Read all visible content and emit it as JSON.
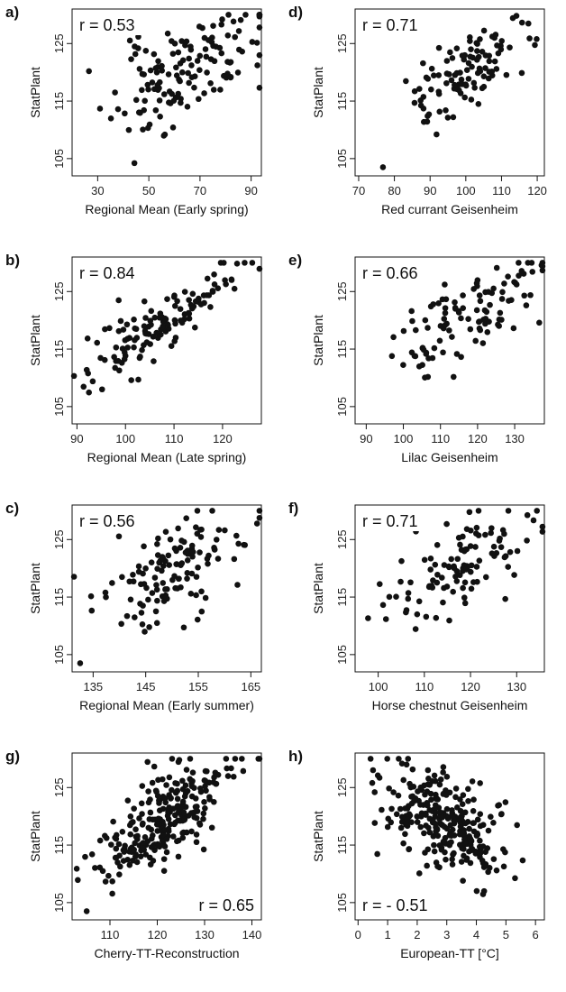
{
  "chart_data": [
    {
      "panel": "a)",
      "type": "scatter",
      "xlabel": "Regional Mean (Early spring)",
      "ylabel": "StatPlant",
      "annotation": "r = 0.53",
      "annotation_pos": "top-left",
      "xlim": [
        20,
        94
      ],
      "ylim": [
        102,
        131
      ],
      "xticks": [
        30,
        50,
        70,
        90
      ],
      "yticks": [
        105,
        115,
        125
      ],
      "n_points": 140,
      "seed": 11,
      "x_mean": 64,
      "x_sd": 14,
      "r": 0.53,
      "y_mean": 120,
      "y_sd": 5
    },
    {
      "panel": "d)",
      "type": "scatter",
      "xlabel": "Red currant Geisenheim",
      "ylabel": "StatPlant",
      "annotation": "r = 0.71",
      "annotation_pos": "top-left",
      "xlim": [
        69,
        122
      ],
      "ylim": [
        102,
        131
      ],
      "xticks": [
        70,
        80,
        90,
        100,
        110,
        120
      ],
      "yticks": [
        105,
        115,
        125
      ],
      "n_points": 110,
      "seed": 23,
      "x_mean": 100,
      "x_sd": 9,
      "r": 0.71,
      "y_mean": 120,
      "y_sd": 5
    },
    {
      "panel": "b)",
      "type": "scatter",
      "xlabel": "Regional Mean (Late spring)",
      "ylabel": "StatPlant",
      "annotation": "r = 0.84",
      "annotation_pos": "top-left",
      "xlim": [
        89,
        128
      ],
      "ylim": [
        102,
        131
      ],
      "xticks": [
        90,
        100,
        110,
        120
      ],
      "yticks": [
        105,
        115,
        125
      ],
      "n_points": 130,
      "seed": 37,
      "x_mean": 108,
      "x_sd": 8,
      "r": 0.84,
      "y_mean": 120,
      "y_sd": 5
    },
    {
      "panel": "e)",
      "type": "scatter",
      "xlabel": "Lilac Geisenheim",
      "ylabel": "StatPlant",
      "annotation": "r = 0.66",
      "annotation_pos": "top-left",
      "xlim": [
        87,
        138
      ],
      "ylim": [
        102,
        131
      ],
      "xticks": [
        90,
        100,
        110,
        120,
        130
      ],
      "yticks": [
        105,
        115,
        125
      ],
      "n_points": 110,
      "seed": 51,
      "x_mean": 116,
      "x_sd": 10,
      "r": 0.66,
      "y_mean": 120,
      "y_sd": 5
    },
    {
      "panel": "c)",
      "type": "scatter",
      "xlabel": "Regional Mean (Early summer)",
      "ylabel": "StatPlant",
      "annotation": "r = 0.56",
      "annotation_pos": "top-left",
      "xlim": [
        131,
        167
      ],
      "ylim": [
        102,
        131
      ],
      "xticks": [
        135,
        145,
        155,
        165
      ],
      "yticks": [
        105,
        115,
        125
      ],
      "n_points": 130,
      "seed": 67,
      "x_mean": 150,
      "x_sd": 7,
      "r": 0.56,
      "y_mean": 120,
      "y_sd": 5
    },
    {
      "panel": "f)",
      "type": "scatter",
      "xlabel": "Horse chestnut Geisenheim",
      "ylabel": "StatPlant",
      "annotation": "r = 0.71",
      "annotation_pos": "top-left",
      "xlim": [
        95,
        136
      ],
      "ylim": [
        102,
        131
      ],
      "xticks": [
        100,
        110,
        120,
        130
      ],
      "yticks": [
        105,
        115,
        125
      ],
      "n_points": 110,
      "seed": 79,
      "x_mean": 118,
      "x_sd": 8,
      "r": 0.71,
      "y_mean": 120,
      "y_sd": 5
    },
    {
      "panel": "g)",
      "type": "scatter",
      "xlabel": "Cherry-TT-Reconstruction",
      "ylabel": "StatPlant",
      "annotation": "r = 0.65",
      "annotation_pos": "bottom-right",
      "xlim": [
        102,
        142
      ],
      "ylim": [
        102,
        131
      ],
      "xticks": [
        110,
        120,
        130,
        140
      ],
      "yticks": [
        105,
        115,
        125
      ],
      "n_points": 260,
      "seed": 97,
      "x_mean": 121,
      "x_sd": 7,
      "r": 0.65,
      "y_mean": 119,
      "y_sd": 5
    },
    {
      "panel": "h)",
      "type": "scatter",
      "xlabel": "European-TT [°C]",
      "ylabel": "StatPlant",
      "annotation": "r = - 0.51",
      "annotation_pos": "bottom-left",
      "xlim": [
        -0.1,
        6.3
      ],
      "ylim": [
        102,
        131
      ],
      "xticks": [
        0,
        1,
        2,
        3,
        4,
        5,
        6
      ],
      "yticks": [
        105,
        115,
        125
      ],
      "n_points": 280,
      "seed": 113,
      "x_mean": 2.9,
      "x_sd": 1.0,
      "r": -0.51,
      "y_mean": 119,
      "y_sd": 5
    }
  ]
}
